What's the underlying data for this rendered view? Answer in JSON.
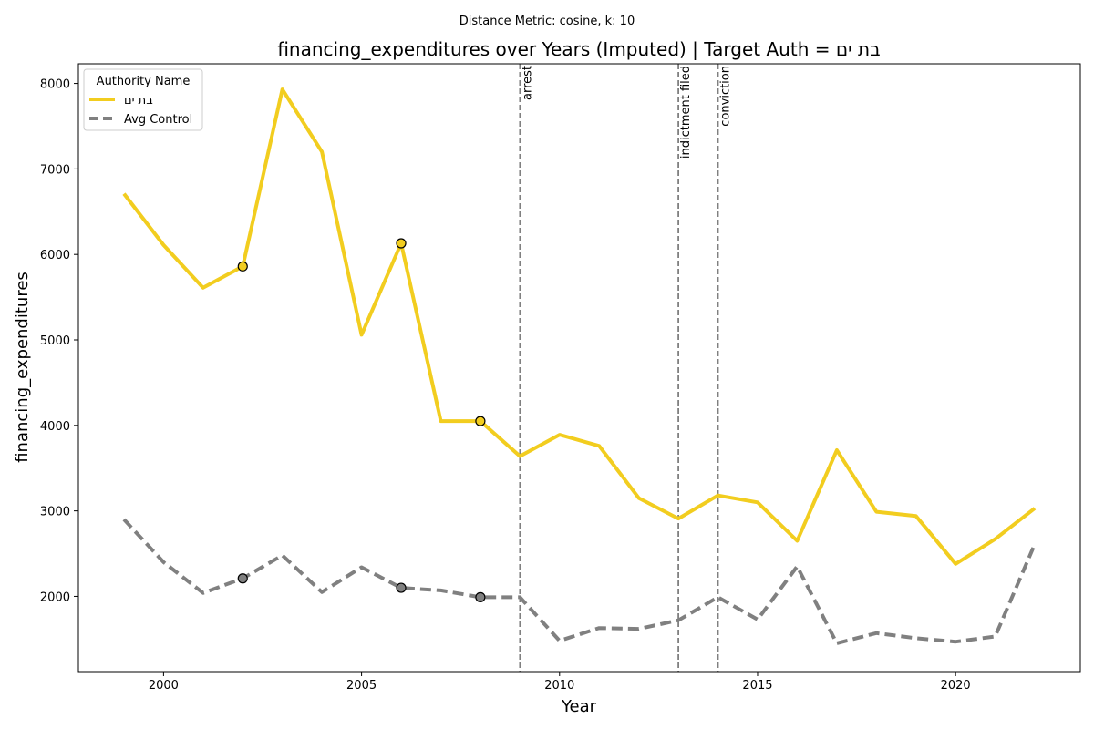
{
  "chart_data": {
    "type": "line",
    "suptitle": "Distance Metric: cosine, k: 10",
    "title": "financing_expenditures over Years (Imputed) | Target Auth = בת ים",
    "xlabel": "Year",
    "ylabel": "financing_expenditures",
    "xlim": [
      1997.85,
      2023.15
    ],
    "ylim": [
      1120,
      8230
    ],
    "x_ticks": [
      2000,
      2005,
      2010,
      2015,
      2020
    ],
    "y_ticks": [
      2000,
      3000,
      4000,
      5000,
      6000,
      7000,
      8000
    ],
    "grid": false,
    "legend": {
      "title": "Authority Name",
      "placement": "top-left",
      "entries": [
        "בת ים",
        "Avg Control"
      ]
    },
    "x": [
      1999,
      2000,
      2001,
      2002,
      2003,
      2004,
      2005,
      2006,
      2007,
      2008,
      2009,
      2010,
      2011,
      2012,
      2013,
      2014,
      2015,
      2016,
      2017,
      2018,
      2019,
      2020,
      2021,
      2022
    ],
    "series": [
      {
        "name": "בת ים",
        "color": "#f2cd1f",
        "style": "solid",
        "values": [
          6710,
          6110,
          5610,
          5860,
          7930,
          7200,
          5060,
          6130,
          4050,
          4050,
          3640,
          3890,
          3760,
          3150,
          2910,
          3180,
          3100,
          2650,
          3710,
          2990,
          2940,
          2380,
          2670,
          3030
        ],
        "imputed_years": [
          2002,
          2006,
          2008
        ]
      },
      {
        "name": "Avg Control",
        "color": "#808080",
        "style": "dashed",
        "values": [
          2900,
          2400,
          2040,
          2210,
          2480,
          2050,
          2340,
          2100,
          2070,
          1990,
          1990,
          1480,
          1630,
          1620,
          1720,
          1990,
          1730,
          2350,
          1450,
          1570,
          1510,
          1470,
          1530,
          2610
        ],
        "imputed_years": [
          2002,
          2006,
          2008
        ]
      }
    ],
    "events": [
      {
        "year": 2009,
        "label": "arrest"
      },
      {
        "year": 2013,
        "label": "indictment filed"
      },
      {
        "year": 2014,
        "label": "conviction"
      }
    ]
  }
}
